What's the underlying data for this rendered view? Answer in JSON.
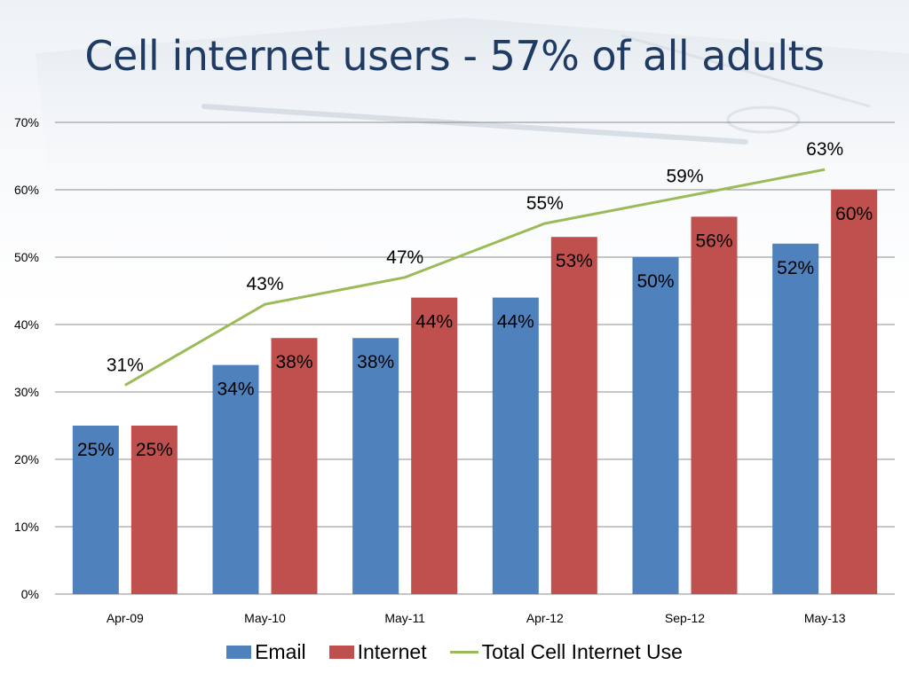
{
  "slide": {
    "title": "Cell internet users - 57% of all adults"
  },
  "chart_data": {
    "type": "bar",
    "categories": [
      "Apr-09",
      "May-10",
      "May-11",
      "Apr-12",
      "Sep-12",
      "May-13"
    ],
    "series": [
      {
        "name": "Email",
        "kind": "bar",
        "values": [
          25,
          34,
          38,
          44,
          50,
          52
        ],
        "color": "#4f81bd",
        "labels": [
          "25%",
          "34%",
          "38%",
          "44%",
          "50%",
          "52%"
        ]
      },
      {
        "name": "Internet",
        "kind": "bar",
        "values": [
          25,
          38,
          44,
          53,
          56,
          60
        ],
        "color": "#c0504d",
        "labels": [
          "25%",
          "38%",
          "44%",
          "53%",
          "56%",
          "60%"
        ]
      },
      {
        "name": "Total Cell Internet Use",
        "kind": "line",
        "values": [
          31,
          43,
          47,
          55,
          59,
          63
        ],
        "color": "#9bbb59",
        "labels": [
          "31%",
          "43%",
          "47%",
          "55%",
          "59%",
          "63%"
        ]
      }
    ],
    "ylim": [
      0,
      70
    ],
    "yticks": [
      "0%",
      "10%",
      "20%",
      "30%",
      "40%",
      "50%",
      "60%",
      "70%"
    ],
    "grid": true,
    "legend": "bottom"
  }
}
